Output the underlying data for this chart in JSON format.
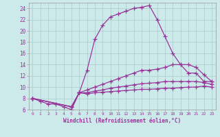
{
  "background_color": "#cceaea",
  "grid_color": "#b0d0d0",
  "line_color": "#993399",
  "marker": "+",
  "markersize": 4,
  "linewidth": 0.9,
  "xlabel": "Windchill (Refroidissement éolien,°C)",
  "xlim": [
    -0.5,
    23.5
  ],
  "ylim": [
    6,
    25
  ],
  "yticks": [
    6,
    8,
    10,
    12,
    14,
    16,
    18,
    20,
    22,
    24
  ],
  "xticks": [
    0,
    1,
    2,
    3,
    4,
    5,
    6,
    7,
    8,
    9,
    10,
    11,
    12,
    13,
    14,
    15,
    16,
    17,
    18,
    19,
    20,
    21,
    22,
    23
  ],
  "curves": [
    {
      "x": [
        0,
        1,
        2,
        3,
        4,
        5,
        6,
        7,
        8,
        9,
        10,
        11,
        12,
        13,
        14,
        15,
        16,
        17,
        18,
        19,
        20,
        21,
        22,
        23
      ],
      "y": [
        8,
        7.5,
        7.0,
        7.0,
        6.5,
        6.0,
        9.0,
        13.0,
        18.5,
        21.0,
        22.5,
        23.0,
        23.5,
        24.0,
        24.2,
        24.5,
        22.0,
        19.0,
        16.0,
        14.0,
        12.5,
        12.5,
        11.0,
        11.0
      ]
    },
    {
      "x": [
        0,
        5,
        6,
        7,
        8,
        9,
        10,
        11,
        12,
        13,
        14,
        15,
        16,
        17,
        18,
        19,
        20,
        21,
        22,
        23
      ],
      "y": [
        8.0,
        6.5,
        9.0,
        9.5,
        10.0,
        10.5,
        11.0,
        11.5,
        12.0,
        12.5,
        13.0,
        13.0,
        13.2,
        13.5,
        14.0,
        14.0,
        14.0,
        13.5,
        12.2,
        11.0
      ]
    },
    {
      "x": [
        0,
        5,
        6,
        7,
        8,
        9,
        10,
        11,
        12,
        13,
        14,
        15,
        16,
        17,
        18,
        19,
        20,
        21,
        22,
        23
      ],
      "y": [
        8.0,
        6.5,
        9.0,
        9.0,
        9.3,
        9.5,
        9.8,
        10.0,
        10.2,
        10.4,
        10.6,
        10.7,
        10.8,
        11.0,
        11.0,
        11.0,
        11.0,
        11.0,
        10.8,
        10.5
      ]
    },
    {
      "x": [
        0,
        5,
        6,
        7,
        8,
        9,
        10,
        11,
        12,
        13,
        14,
        15,
        16,
        17,
        18,
        19,
        20,
        21,
        22,
        23
      ],
      "y": [
        8.0,
        6.5,
        9.0,
        8.8,
        9.0,
        9.1,
        9.2,
        9.3,
        9.4,
        9.5,
        9.6,
        9.6,
        9.7,
        9.8,
        9.8,
        9.9,
        10.0,
        10.0,
        10.2,
        10.0
      ]
    }
  ]
}
